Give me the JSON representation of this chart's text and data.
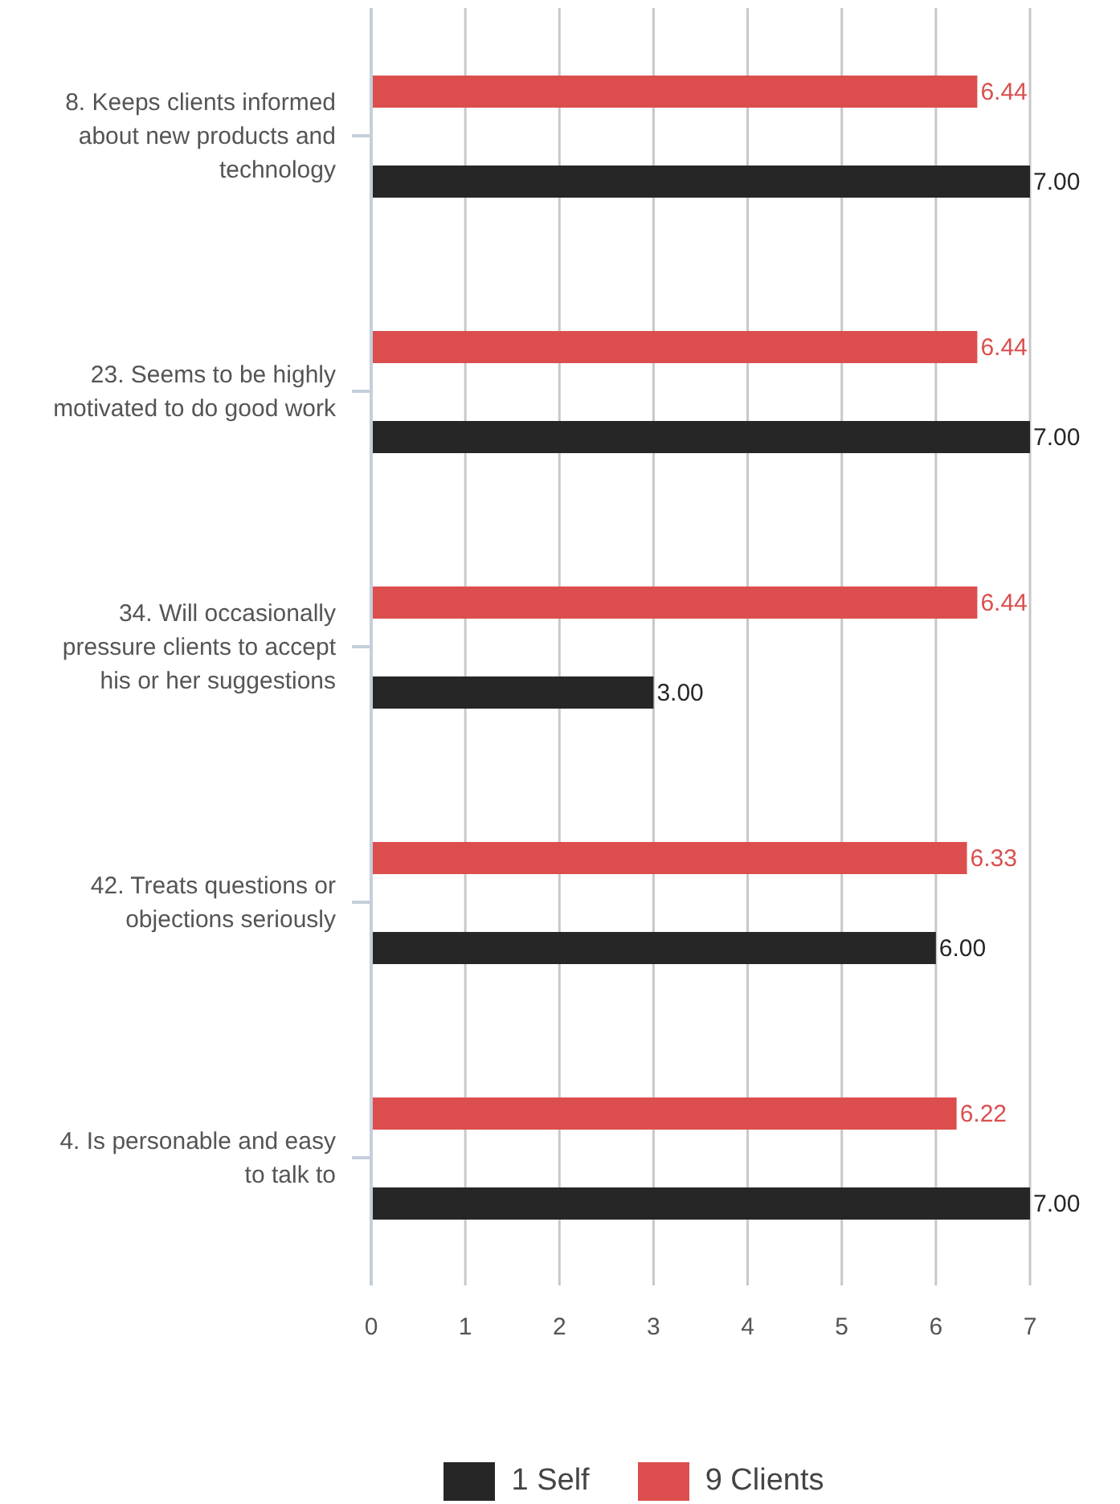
{
  "chart_data": {
    "type": "bar",
    "orientation": "horizontal",
    "categories": [
      "8. Keeps clients informed about new products and technology",
      "23. Seems to be highly motivated to do good work",
      "34. Will occasionally pressure clients to accept his or her suggestions",
      "42. Treats questions or objections seriously",
      "4. Is personable and easy to talk to"
    ],
    "series": [
      {
        "name": "1 Self",
        "color": "#262626",
        "values": [
          7.0,
          7.0,
          3.0,
          6.0,
          7.0
        ],
        "value_labels": [
          "7.00",
          "7.00",
          "3.00",
          "6.00",
          "7.00"
        ]
      },
      {
        "name": "9 Clients",
        "color": "#dc4e4e",
        "values": [
          6.44,
          6.44,
          6.44,
          6.33,
          6.22
        ],
        "value_labels": [
          "6.44",
          "6.44",
          "6.44",
          "6.33",
          "6.22"
        ]
      }
    ],
    "xlim": [
      0,
      7
    ],
    "xticks": [
      0,
      1,
      2,
      3,
      4,
      5,
      6,
      7
    ],
    "grid": "x",
    "legend": "bottom"
  }
}
